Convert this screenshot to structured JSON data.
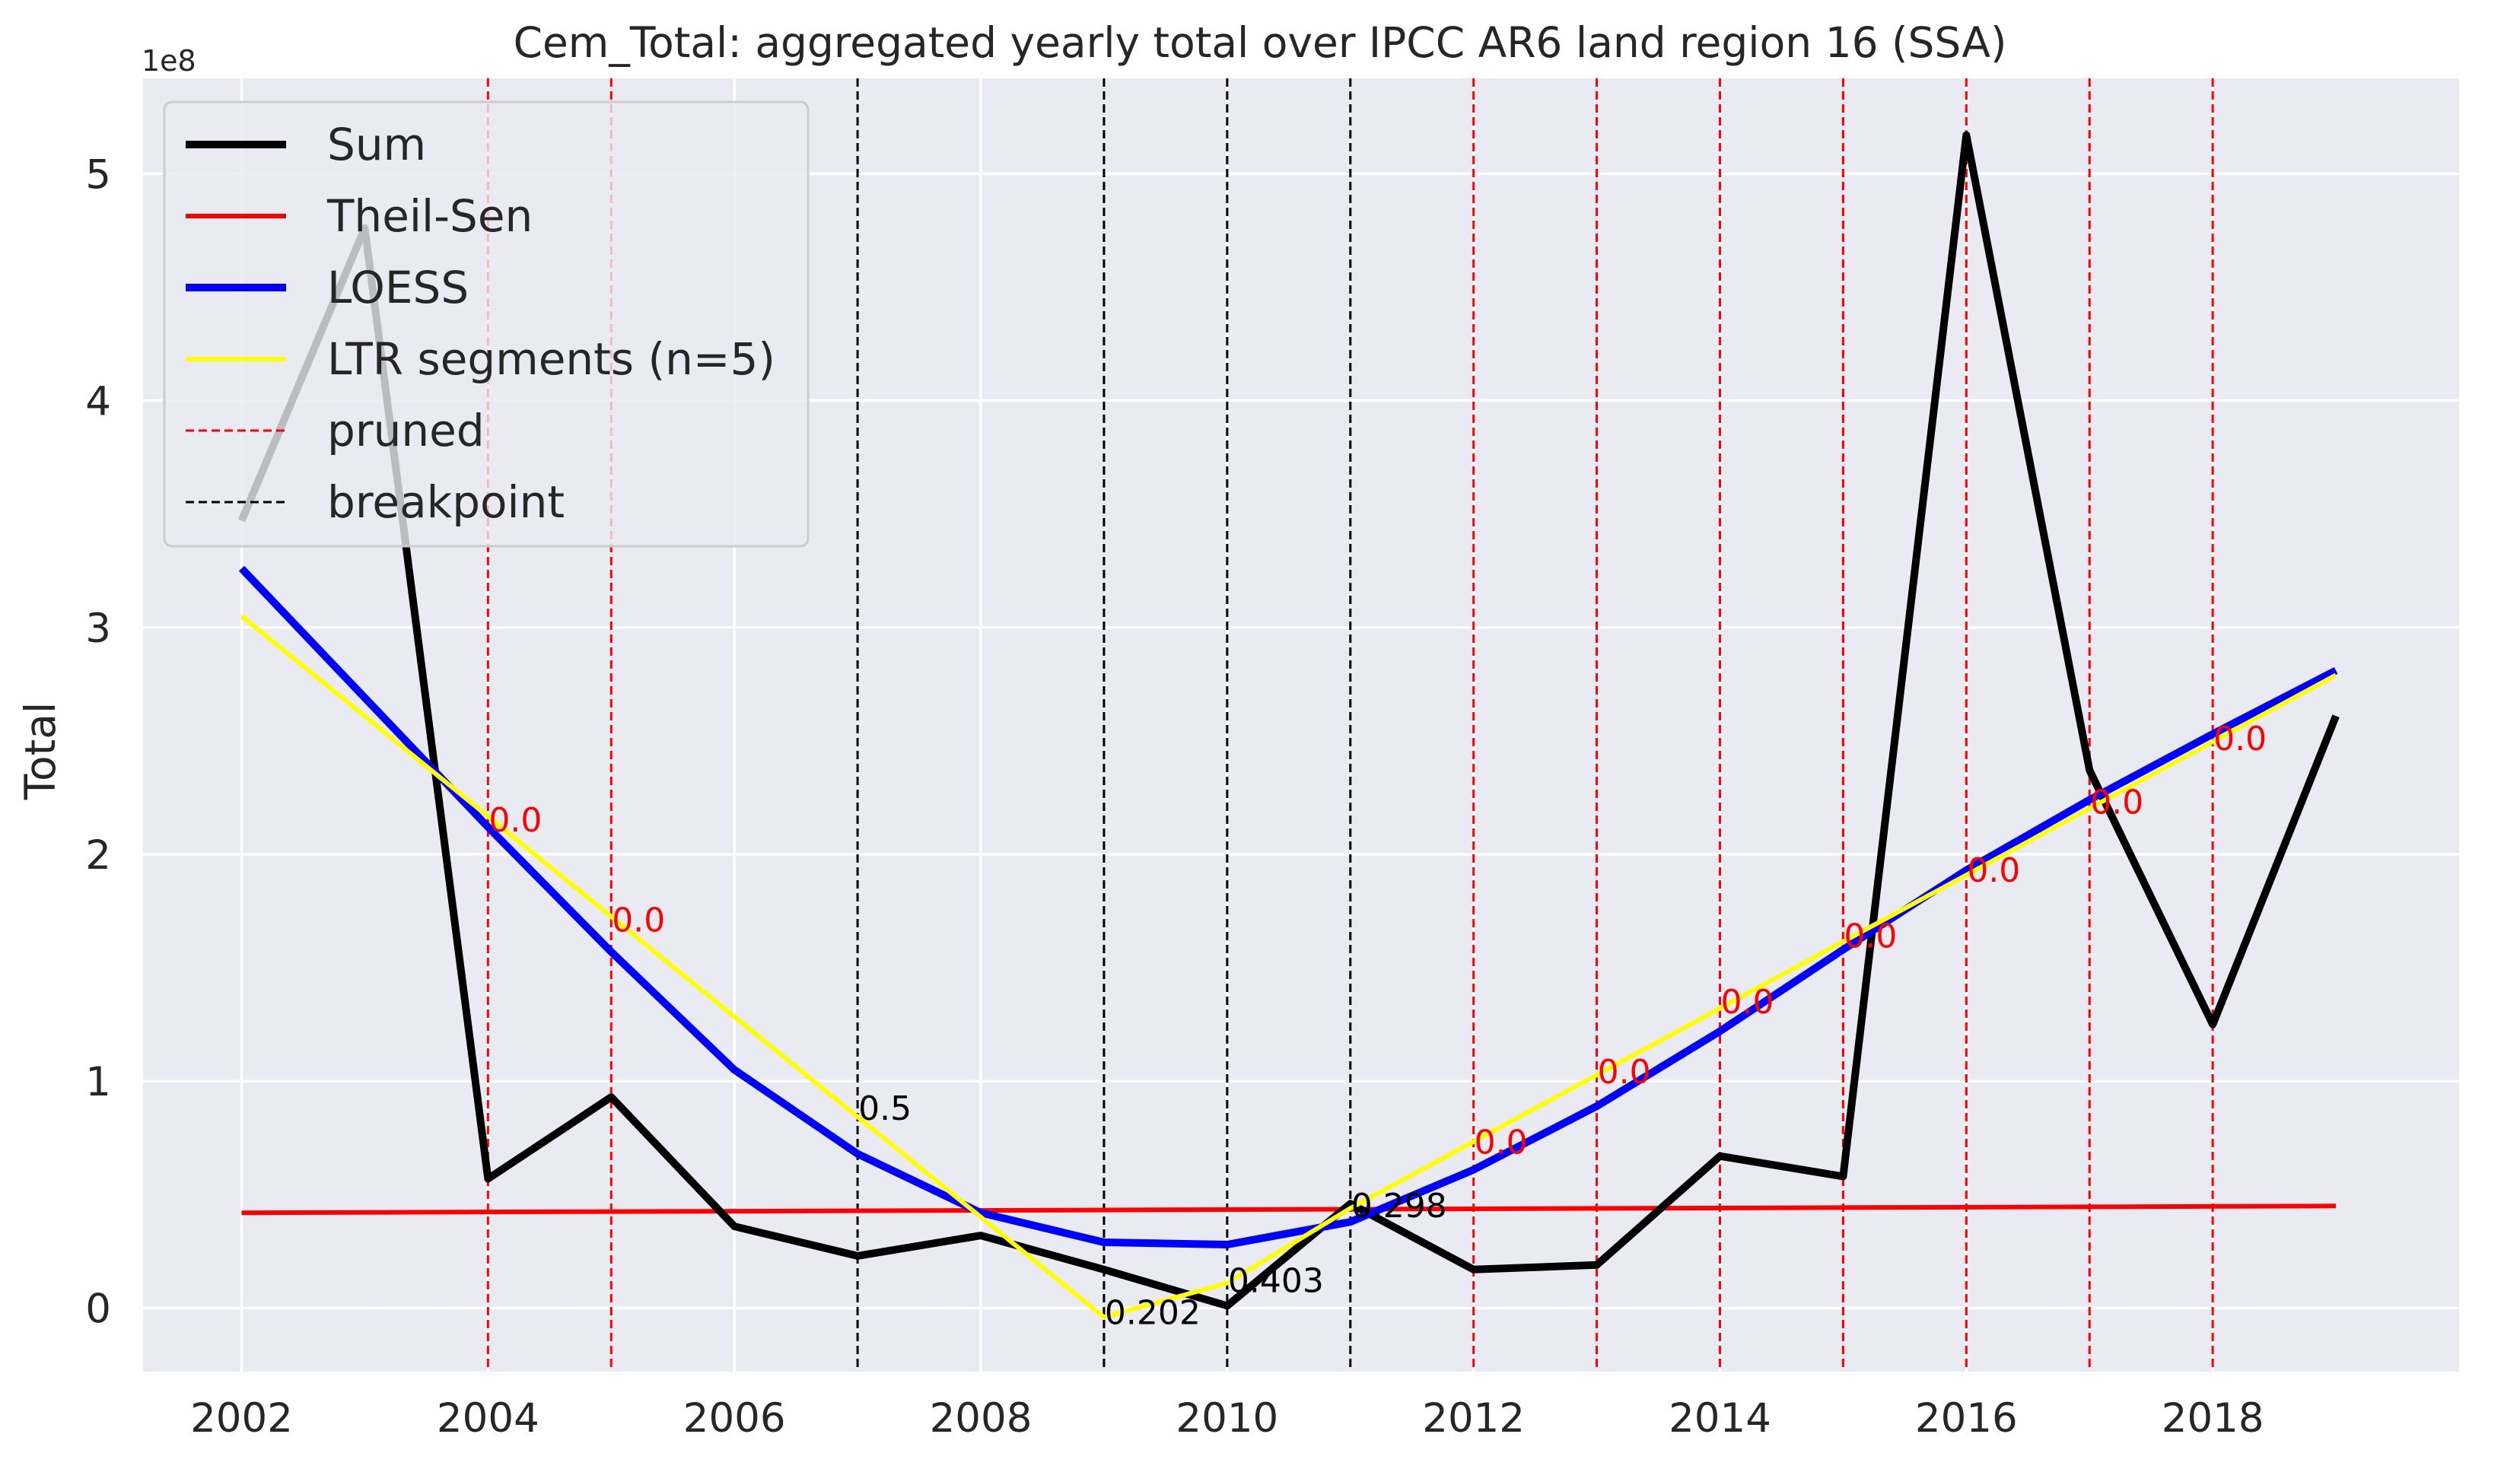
{
  "chart_data": {
    "type": "line",
    "title": "Cem_Total: aggregated yearly total over IPCC AR6 land region 16 (SSA)",
    "ylabel": "Total",
    "xlabel": "",
    "y_offset_label": "1e8",
    "y_scale": 100000000,
    "xlim": [
      2001.2,
      2020.0
    ],
    "ylim": [
      -0.28,
      5.42
    ],
    "grid": true,
    "legend_position": "upper-left",
    "x_ticks": [
      2002,
      2004,
      2006,
      2008,
      2010,
      2012,
      2014,
      2016,
      2018
    ],
    "y_ticks": [
      0,
      1,
      2,
      3,
      4,
      5
    ],
    "colors": {
      "background": "#eaeaf2",
      "grid": "#ffffff",
      "sum": "#000000",
      "theil_sen": "#ff0000",
      "loess": "#0000ff",
      "ltr": "#ffff00",
      "pruned": "#ff0000",
      "breakpoint": "#000000"
    },
    "series": [
      {
        "name": "Sum",
        "style": "line",
        "x": [
          2002,
          2003,
          2004,
          2005,
          2006,
          2007,
          2008,
          2009,
          2010,
          2011,
          2012,
          2013,
          2014,
          2015,
          2016,
          2017,
          2018,
          2019
        ],
        "y": [
          3.47,
          4.76,
          0.57,
          0.93,
          0.36,
          0.23,
          0.32,
          0.17,
          0.01,
          0.46,
          0.17,
          0.19,
          0.67,
          0.58,
          5.17,
          2.37,
          1.25,
          2.61
        ]
      },
      {
        "name": "Theil-Sen",
        "style": "line",
        "x": [
          2002,
          2019
        ],
        "y": [
          0.42,
          0.45
        ]
      },
      {
        "name": "LOESS",
        "style": "line",
        "x": [
          2002,
          2003,
          2004,
          2005,
          2006,
          2007,
          2008,
          2009,
          2010,
          2011,
          2012,
          2013,
          2014,
          2015,
          2016,
          2017,
          2018,
          2019
        ],
        "y": [
          3.26,
          2.69,
          2.12,
          1.57,
          1.05,
          0.68,
          0.42,
          0.29,
          0.28,
          0.38,
          0.61,
          0.89,
          1.22,
          1.58,
          1.93,
          2.24,
          2.53,
          2.81
        ]
      },
      {
        "name": "LTR segments (n=5)",
        "style": "line",
        "x": [
          2002,
          2009,
          2010,
          2011,
          2019
        ],
        "y": [
          3.05,
          -0.04,
          0.11,
          0.44,
          2.79
        ]
      },
      {
        "name": "pruned",
        "style": "vline-dashed",
        "x": [
          2004,
          2005,
          2012,
          2013,
          2014,
          2015,
          2016,
          2017,
          2018
        ]
      },
      {
        "name": "breakpoint",
        "style": "vline-dashed",
        "x": [
          2007,
          2009,
          2010,
          2011
        ]
      }
    ],
    "annotations": [
      {
        "text": "0.0",
        "x": 2004,
        "y": 2.1,
        "color": "#ff0000"
      },
      {
        "text": "0.0",
        "x": 2005,
        "y": 1.66,
        "color": "#ff0000"
      },
      {
        "text": "0.5",
        "x": 2007,
        "y": 0.83,
        "color": "#000000"
      },
      {
        "text": "0.202",
        "x": 2009,
        "y": -0.07,
        "color": "#000000"
      },
      {
        "text": "0.403",
        "x": 2010,
        "y": 0.07,
        "color": "#000000"
      },
      {
        "text": "0.298",
        "x": 2011,
        "y": 0.4,
        "color": "#000000"
      },
      {
        "text": "0.0",
        "x": 2012,
        "y": 0.68,
        "color": "#ff0000"
      },
      {
        "text": "0.0",
        "x": 2013,
        "y": 0.99,
        "color": "#ff0000"
      },
      {
        "text": "0.0",
        "x": 2014,
        "y": 1.3,
        "color": "#ff0000"
      },
      {
        "text": "0.0",
        "x": 2015,
        "y": 1.59,
        "color": "#ff0000"
      },
      {
        "text": "0.0",
        "x": 2016,
        "y": 1.88,
        "color": "#ff0000"
      },
      {
        "text": "0.0",
        "x": 2017,
        "y": 2.18,
        "color": "#ff0000"
      },
      {
        "text": "0.0",
        "x": 2018,
        "y": 2.46,
        "color": "#ff0000"
      }
    ]
  }
}
